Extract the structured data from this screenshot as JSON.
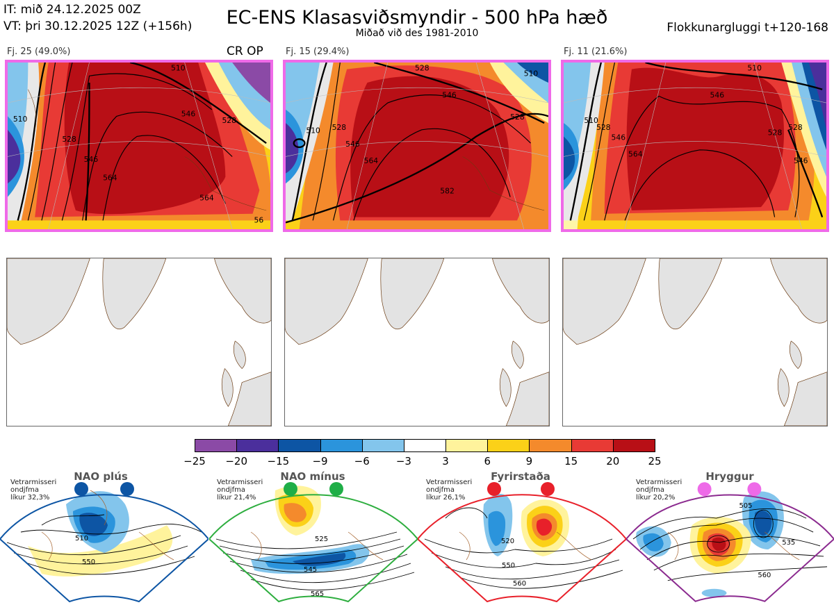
{
  "header": {
    "init_time": "IT: mið 24.12.2025 00Z",
    "valid_time": "VT: þri 30.12.2025 12Z  (+156h)",
    "title": "EC-ENS Klasasviðsmyndir - 500 hPa hæð",
    "subtitle": "Miðað við des 1981-2010",
    "window": "Flokkunargluggi t+120-168"
  },
  "clusters": [
    {
      "label": "Fj. 25 (49.0%)",
      "extra_label": "CR OP",
      "contour_labels": [
        "510",
        "528",
        "546",
        "564",
        "546",
        "528",
        "510",
        "564",
        "56"
      ]
    },
    {
      "label": "Fj. 15 (29.4%)",
      "extra_label": "",
      "contour_labels": [
        "510",
        "528",
        "546",
        "564",
        "582",
        "546",
        "528",
        "510",
        "528"
      ]
    },
    {
      "label": "Fj. 11 (21.6%)",
      "extra_label": "",
      "contour_labels": [
        "510",
        "528",
        "546",
        "564",
        "546",
        "528",
        "510",
        "546",
        "528"
      ]
    }
  ],
  "colorbar": {
    "ticks": [
      "−25",
      "−20",
      "−15",
      "−9",
      "−6",
      "−3",
      "3",
      "6",
      "9",
      "15",
      "20",
      "25"
    ],
    "colors": [
      "#8b4aa6",
      "#4b2f9c",
      "#0d55a4",
      "#2b94dc",
      "#83c5ec",
      "#ffffff",
      "#fff39c",
      "#fbd118",
      "#f48a2c",
      "#e83a35",
      "#b80f16"
    ]
  },
  "regimes": [
    {
      "name": "NAO plús",
      "info": [
        "Vetrarmisseri",
        "ondjfma",
        "líkur 32,3%"
      ],
      "dot_color": "#0d55a4",
      "border_color": "#0d55a4",
      "labels": [
        "510",
        "550"
      ]
    },
    {
      "name": "NAO mínus",
      "info": [
        "Vetrarmisseri",
        "ondjfma",
        "líkur 21,4%"
      ],
      "dot_color": "#1fae47",
      "border_color": "#2eae3f",
      "labels": [
        "525",
        "545",
        "565"
      ]
    },
    {
      "name": "Fyrirstaða",
      "info": [
        "Vetrarmisseri",
        "ondjfma",
        "líkur 26,1%"
      ],
      "dot_color": "#e8202a",
      "border_color": "#e8202a",
      "labels": [
        "520",
        "550",
        "560"
      ]
    },
    {
      "name": "Hryggur",
      "info": [
        "Vetrarmisseri",
        "ondjfma",
        "líkur 20,2%"
      ],
      "dot_color": "#ee6ae8",
      "border_color": "#8b2a8f",
      "labels": [
        "505",
        "535",
        "560"
      ]
    }
  ]
}
